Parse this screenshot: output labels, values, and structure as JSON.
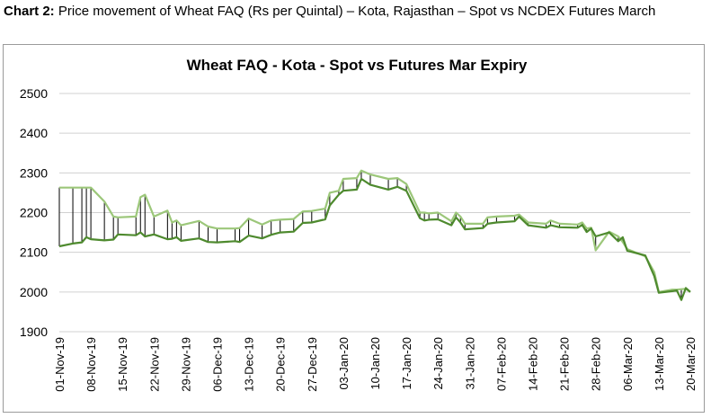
{
  "caption": {
    "prefix": "Chart 2:",
    "text": "Price movement of Wheat FAQ (Rs per Quintal) – Kota, Rajasthan – Spot vs NCDEX Futures March"
  },
  "chart_data": {
    "type": "line",
    "title": "Wheat FAQ - Kota - Spot vs Futures Mar Expiry",
    "xlabel": "",
    "ylabel": "",
    "ylim": [
      1900,
      2500
    ],
    "yticks": [
      "2500",
      "2400",
      "2300",
      "2200",
      "2100",
      "2000",
      "1900"
    ],
    "xtick_labels": [
      "01-Nov-19",
      "08-Nov-19",
      "15-Nov-19",
      "22-Nov-19",
      "29-Nov-19",
      "06-Dec-19",
      "13-Dec-19",
      "20-Dec-19",
      "27-Dec-19",
      "03-Jan-20",
      "10-Jan-20",
      "17-Jan-20",
      "24-Jan-20",
      "31-Jan-20",
      "07-Feb-20",
      "14-Feb-20",
      "21-Feb-20",
      "28-Feb-20",
      "06-Mar-20",
      "13-Mar-20",
      "20-Mar-20"
    ],
    "x_start": "01-Nov-19",
    "x_end": "20-Mar-20",
    "grid": true,
    "legend": "none",
    "high_low_lines": true,
    "colors": {
      "spot": "#4e8a2e",
      "futures": "#9cc77a",
      "droplines": "#000000",
      "grid": "#d0d0d0"
    },
    "series": [
      {
        "key": "spot",
        "values": [
          [
            "01-Nov-19",
            2115
          ],
          [
            "04-Nov-19",
            2122
          ],
          [
            "06-Nov-19",
            2125
          ],
          [
            "07-Nov-19",
            2138
          ],
          [
            "08-Nov-19",
            2133
          ],
          [
            "11-Nov-19",
            2130
          ],
          [
            "13-Nov-19",
            2132
          ],
          [
            "14-Nov-19",
            2145
          ],
          [
            "18-Nov-19",
            2143
          ],
          [
            "19-Nov-19",
            2150
          ],
          [
            "20-Nov-19",
            2140
          ],
          [
            "22-Nov-19",
            2145
          ],
          [
            "25-Nov-19",
            2133
          ],
          [
            "26-Nov-19",
            2134
          ],
          [
            "27-Nov-19",
            2138
          ],
          [
            "28-Nov-19",
            2129
          ],
          [
            "02-Dec-19",
            2135
          ],
          [
            "04-Dec-19",
            2126
          ],
          [
            "06-Dec-19",
            2125
          ],
          [
            "10-Dec-19",
            2128
          ],
          [
            "11-Dec-19",
            2126
          ],
          [
            "13-Dec-19",
            2142
          ],
          [
            "16-Dec-19",
            2135
          ],
          [
            "18-Dec-19",
            2144
          ],
          [
            "20-Dec-19",
            2150
          ],
          [
            "23-Dec-19",
            2152
          ],
          [
            "25-Dec-19",
            2174
          ],
          [
            "27-Dec-19",
            2175
          ],
          [
            "30-Dec-19",
            2183
          ],
          [
            "31-Dec-19",
            2218
          ],
          [
            "02-Jan-20",
            2245
          ],
          [
            "03-Jan-20",
            2255
          ],
          [
            "06-Jan-20",
            2258
          ],
          [
            "07-Jan-20",
            2285
          ],
          [
            "09-Jan-20",
            2270
          ],
          [
            "13-Jan-20",
            2258
          ],
          [
            "15-Jan-20",
            2265
          ],
          [
            "17-Jan-20",
            2255
          ],
          [
            "20-Jan-20",
            2186
          ],
          [
            "21-Jan-20",
            2180
          ],
          [
            "22-Jan-20",
            2182
          ],
          [
            "24-Jan-20",
            2183
          ],
          [
            "27-Jan-20",
            2168
          ],
          [
            "28-Jan-20",
            2188
          ],
          [
            "29-Jan-20",
            2175
          ],
          [
            "30-Jan-20",
            2158
          ],
          [
            "03-Feb-20",
            2161
          ],
          [
            "04-Feb-20",
            2172
          ],
          [
            "06-Feb-20",
            2175
          ],
          [
            "10-Feb-20",
            2178
          ],
          [
            "11-Feb-20",
            2190
          ],
          [
            "13-Feb-20",
            2168
          ],
          [
            "17-Feb-20",
            2162
          ],
          [
            "18-Feb-20",
            2168
          ],
          [
            "20-Feb-20",
            2163
          ],
          [
            "24-Feb-20",
            2162
          ],
          [
            "25-Feb-20",
            2169
          ],
          [
            "26-Feb-20",
            2151
          ],
          [
            "27-Feb-20",
            2160
          ],
          [
            "28-Feb-20",
            2140
          ],
          [
            "02-Mar-20",
            2150
          ],
          [
            "04-Mar-20",
            2128
          ],
          [
            "05-Mar-20",
            2138
          ],
          [
            "06-Mar-20",
            2104
          ],
          [
            "10-Mar-20",
            2092
          ],
          [
            "12-Mar-20",
            2040
          ],
          [
            "13-Mar-20",
            1998
          ],
          [
            "16-Mar-20",
            2002
          ],
          [
            "17-Mar-20",
            2004
          ],
          [
            "18-Mar-20",
            1980
          ],
          [
            "19-Mar-20",
            2010
          ],
          [
            "20-Mar-20",
            2000
          ]
        ]
      },
      {
        "key": "futures",
        "values": [
          [
            "01-Nov-19",
            2263
          ],
          [
            "04-Nov-19",
            2263
          ],
          [
            "06-Nov-19",
            2263
          ],
          [
            "07-Nov-19",
            2263
          ],
          [
            "08-Nov-19",
            2263
          ],
          [
            "11-Nov-19",
            2228
          ],
          [
            "13-Nov-19",
            2190
          ],
          [
            "14-Nov-19",
            2188
          ],
          [
            "18-Nov-19",
            2190
          ],
          [
            "19-Nov-19",
            2239
          ],
          [
            "20-Nov-19",
            2245
          ],
          [
            "22-Nov-19",
            2190
          ],
          [
            "25-Nov-19",
            2205
          ],
          [
            "26-Nov-19",
            2175
          ],
          [
            "27-Nov-19",
            2180
          ],
          [
            "28-Nov-19",
            2168
          ],
          [
            "02-Dec-19",
            2179
          ],
          [
            "04-Dec-19",
            2165
          ],
          [
            "06-Dec-19",
            2160
          ],
          [
            "10-Dec-19",
            2160
          ],
          [
            "11-Dec-19",
            2161
          ],
          [
            "13-Dec-19",
            2185
          ],
          [
            "16-Dec-19",
            2170
          ],
          [
            "18-Dec-19",
            2180
          ],
          [
            "20-Dec-19",
            2182
          ],
          [
            "23-Dec-19",
            2184
          ],
          [
            "25-Dec-19",
            2203
          ],
          [
            "27-Dec-19",
            2204
          ],
          [
            "30-Dec-19",
            2210
          ],
          [
            "31-Dec-19",
            2250
          ],
          [
            "02-Jan-20",
            2255
          ],
          [
            "03-Jan-20",
            2285
          ],
          [
            "06-Jan-20",
            2287
          ],
          [
            "07-Jan-20",
            2306
          ],
          [
            "09-Jan-20",
            2296
          ],
          [
            "13-Jan-20",
            2285
          ],
          [
            "15-Jan-20",
            2287
          ],
          [
            "17-Jan-20",
            2272
          ],
          [
            "20-Jan-20",
            2200
          ],
          [
            "21-Jan-20",
            2200
          ],
          [
            "22-Jan-20",
            2198
          ],
          [
            "24-Jan-20",
            2200
          ],
          [
            "27-Jan-20",
            2178
          ],
          [
            "28-Jan-20",
            2200
          ],
          [
            "29-Jan-20",
            2190
          ],
          [
            "30-Jan-20",
            2172
          ],
          [
            "03-Feb-20",
            2172
          ],
          [
            "04-Feb-20",
            2188
          ],
          [
            "06-Feb-20",
            2190
          ],
          [
            "10-Feb-20",
            2192
          ],
          [
            "11-Feb-20",
            2195
          ],
          [
            "13-Feb-20",
            2175
          ],
          [
            "17-Feb-20",
            2172
          ],
          [
            "18-Feb-20",
            2180
          ],
          [
            "20-Feb-20",
            2172
          ],
          [
            "24-Feb-20",
            2170
          ],
          [
            "25-Feb-20",
            2175
          ],
          [
            "26-Feb-20",
            2160
          ],
          [
            "27-Feb-20",
            2162
          ],
          [
            "28-Feb-20",
            2105
          ],
          [
            "02-Mar-20",
            2152
          ],
          [
            "04-Mar-20",
            2140
          ],
          [
            "05-Mar-20",
            2126
          ],
          [
            "06-Mar-20",
            2108
          ],
          [
            "10-Mar-20",
            2090
          ],
          [
            "12-Mar-20",
            2050
          ],
          [
            "13-Mar-20",
            2000
          ],
          [
            "16-Mar-20",
            2006
          ],
          [
            "17-Mar-20",
            2006
          ],
          [
            "18-Mar-20",
            2007
          ],
          [
            "19-Mar-20",
            2008
          ],
          [
            "20-Mar-20",
            2000
          ]
        ]
      }
    ]
  }
}
